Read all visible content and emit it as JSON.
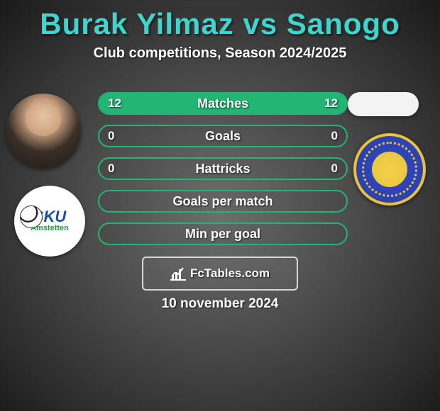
{
  "header": {
    "title": "Burak Yilmaz vs Sanogo",
    "subtitle": "Club competitions, Season 2024/2025",
    "title_color": "#3dd6cf"
  },
  "accent_color": "#22b573",
  "rows": [
    {
      "label": "Matches",
      "left": "12",
      "right": "12",
      "left_pct": 50,
      "right_pct": 50,
      "show_values": true
    },
    {
      "label": "Goals",
      "left": "0",
      "right": "0",
      "left_pct": 0,
      "right_pct": 0,
      "show_values": true
    },
    {
      "label": "Hattricks",
      "left": "0",
      "right": "0",
      "left_pct": 0,
      "right_pct": 0,
      "show_values": true
    },
    {
      "label": "Goals per match",
      "left": "",
      "right": "",
      "left_pct": 0,
      "right_pct": 0,
      "show_values": false
    },
    {
      "label": "Min per goal",
      "left": "",
      "right": "",
      "left_pct": 0,
      "right_pct": 0,
      "show_values": false
    }
  ],
  "attribution": {
    "text": "FcTables.com"
  },
  "date": "10 november 2024",
  "left_player": {
    "name": "Burak Yilmaz"
  },
  "right_player": {
    "name": "Sanogo"
  },
  "left_crest": {
    "line1": "SKU",
    "line2": "Amstetten"
  },
  "right_crest": {
    "ring_text": "FIRST VIENNA FOOTBALL CLUB 1894"
  }
}
